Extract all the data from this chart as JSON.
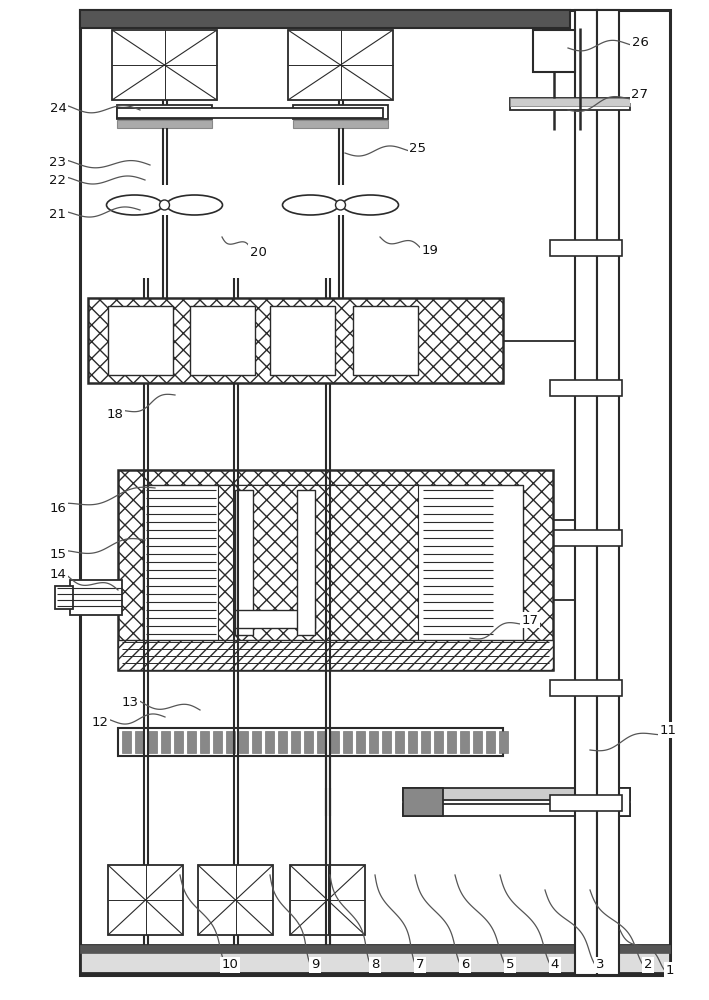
{
  "bg": "#ffffff",
  "lc": "#2a2a2a",
  "fig_w": 7.09,
  "fig_h": 10.0,
  "dpi": 100,
  "leaders": [
    [
      "1",
      620,
      930,
      670,
      970
    ],
    [
      "2",
      590,
      890,
      648,
      965
    ],
    [
      "3",
      545,
      890,
      600,
      965
    ],
    [
      "4",
      500,
      875,
      555,
      965
    ],
    [
      "5",
      455,
      875,
      510,
      965
    ],
    [
      "6",
      415,
      875,
      465,
      965
    ],
    [
      "7",
      375,
      875,
      420,
      965
    ],
    [
      "8",
      330,
      875,
      375,
      965
    ],
    [
      "9",
      270,
      875,
      315,
      965
    ],
    [
      "10",
      180,
      875,
      230,
      965
    ],
    [
      "11",
      590,
      750,
      668,
      730
    ],
    [
      "12",
      165,
      717,
      100,
      722
    ],
    [
      "13",
      200,
      710,
      130,
      702
    ],
    [
      "14",
      118,
      590,
      58,
      575
    ],
    [
      "15",
      145,
      540,
      58,
      555
    ],
    [
      "16",
      155,
      488,
      58,
      508
    ],
    [
      "17",
      470,
      638,
      530,
      620
    ],
    [
      "18",
      175,
      395,
      115,
      415
    ],
    [
      "19",
      380,
      237,
      430,
      250
    ],
    [
      "20",
      222,
      237,
      258,
      252
    ],
    [
      "21",
      140,
      210,
      58,
      215
    ],
    [
      "22",
      145,
      180,
      58,
      180
    ],
    [
      "23",
      150,
      165,
      58,
      163
    ],
    [
      "24",
      140,
      110,
      58,
      108
    ],
    [
      "25",
      345,
      153,
      418,
      148
    ],
    [
      "26",
      568,
      48,
      640,
      42
    ],
    [
      "27",
      568,
      110,
      640,
      95
    ]
  ]
}
